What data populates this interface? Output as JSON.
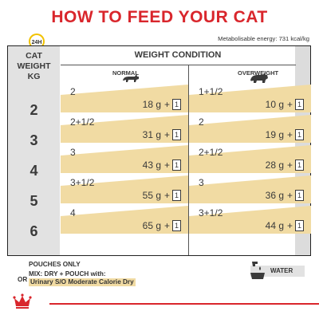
{
  "title": "HOW TO FEED YOUR CAT",
  "clock_label": "24H",
  "energy": "Metabolisable energy: 731 kcal/kg",
  "table": {
    "cat_weight_header": [
      "CAT",
      "WEIGHT",
      "KG"
    ],
    "weight_condition_header": "WEIGHT CONDITION",
    "normal_header": "NORMAL",
    "overweight_header": "OVERWEIGHT",
    "rows": [
      {
        "kg": "2",
        "normal": {
          "pouches": "2",
          "grams": "18 g",
          "pouch_count": "1"
        },
        "overweight": {
          "pouches": "1+1/2",
          "grams": "10 g",
          "pouch_count": "1"
        }
      },
      {
        "kg": "3",
        "normal": {
          "pouches": "2+1/2",
          "grams": "31 g",
          "pouch_count": "1"
        },
        "overweight": {
          "pouches": "2",
          "grams": "19 g",
          "pouch_count": "1"
        }
      },
      {
        "kg": "4",
        "normal": {
          "pouches": "3",
          "grams": "43 g",
          "pouch_count": "1"
        },
        "overweight": {
          "pouches": "2+1/2",
          "grams": "28 g",
          "pouch_count": "1"
        }
      },
      {
        "kg": "5",
        "normal": {
          "pouches": "3+1/2",
          "grams": "55 g",
          "pouch_count": "1"
        },
        "overweight": {
          "pouches": "3",
          "grams": "36 g",
          "pouch_count": "1"
        }
      },
      {
        "kg": "6",
        "normal": {
          "pouches": "4",
          "grams": "65 g",
          "pouch_count": "1"
        },
        "overweight": {
          "pouches": "3+1/2",
          "grams": "44 g",
          "pouch_count": "1"
        }
      }
    ],
    "plus": "+"
  },
  "footer": {
    "pouches_only": "POUCHES ONLY",
    "or": "OR",
    "mix": "MIX: DRY + POUCH with:",
    "product": "Urinary S/O Moderate Calorie Dry",
    "water": "WATER"
  },
  "colors": {
    "brand_red": "#d9262c",
    "band": "#f1dba3",
    "gray": "#e2e2e2",
    "clock": "#f2c200"
  }
}
